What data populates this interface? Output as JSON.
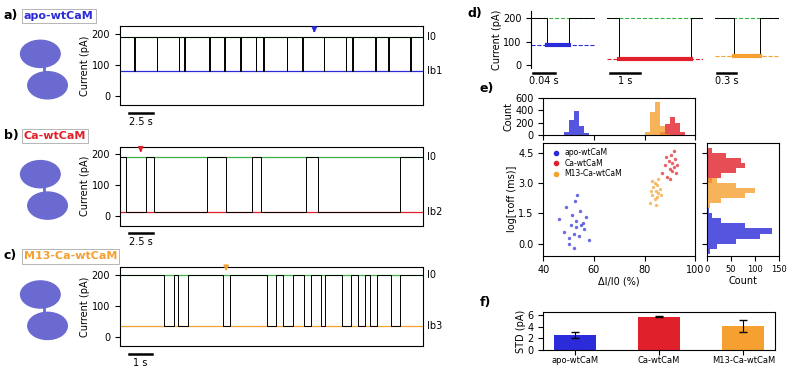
{
  "chart_data": [
    {
      "type": "trace",
      "panel_label": "a)",
      "title": "apo-wtCaM",
      "color": "#2b2bd9",
      "y_label": "Current (pA)",
      "xlim": [
        0,
        32
      ],
      "ylim": [
        -30,
        225
      ],
      "yticks": [
        0,
        100,
        200
      ],
      "tick_labels": "y",
      "open_level": 190,
      "blocked_level": 80,
      "open_label": "I0",
      "blocked_label": "Ib1",
      "events": [
        [
          1.5,
          1.56
        ],
        [
          3.9,
          3.96
        ],
        [
          6.2,
          6.26
        ],
        [
          6.8,
          6.86
        ],
        [
          9.4,
          9.46
        ],
        [
          11.0,
          11.06
        ],
        [
          12.7,
          12.76
        ],
        [
          14.3,
          14.36
        ],
        [
          15.1,
          15.16
        ],
        [
          17.6,
          17.66
        ],
        [
          19.2,
          19.26
        ],
        [
          21.5,
          21.56
        ],
        [
          23.8,
          23.86
        ],
        [
          24.5,
          24.56
        ],
        [
          26.9,
          26.96
        ],
        [
          28.3,
          28.36
        ],
        [
          30.6,
          30.66
        ]
      ],
      "arrow_time": 20.5,
      "scale_bar": {
        "length": 2.5,
        "label": "2.5 s"
      }
    },
    {
      "type": "trace",
      "panel_label": "b)",
      "title": "Ca-wtCaM",
      "color": "#e0202a",
      "y_label": "Current (pA)",
      "xlim": [
        0,
        32
      ],
      "ylim": [
        -30,
        225
      ],
      "yticks": [
        0,
        100,
        200
      ],
      "tick_labels": "y",
      "open_level": 192,
      "blocked_level": 15,
      "open_label": "I0",
      "blocked_label": "Ib2",
      "events": [
        [
          0.6,
          2.8
        ],
        [
          3.6,
          9.2
        ],
        [
          11.2,
          13.9
        ],
        [
          14.9,
          19.6
        ],
        [
          20.9,
          29.5
        ]
      ],
      "arrow_time": 2.2,
      "scale_bar": {
        "length": 2.5,
        "label": "2.5 s"
      }
    },
    {
      "type": "trace",
      "panel_label": "c)",
      "title": "M13-Ca-wtCaM",
      "color": "#f5a030",
      "y_label": "Current (pA)",
      "xlim": [
        0,
        13
      ],
      "ylim": [
        -30,
        225
      ],
      "yticks": [
        0,
        100,
        200
      ],
      "tick_labels": "y",
      "open_level": 198,
      "blocked_level": 35,
      "open_label": "I0",
      "blocked_label": "Ib3",
      "events": [
        [
          1.9,
          2.3
        ],
        [
          2.5,
          2.9
        ],
        [
          4.4,
          4.7
        ],
        [
          6.3,
          6.7
        ],
        [
          7.0,
          7.4
        ],
        [
          7.9,
          8.2
        ],
        [
          8.6,
          8.8
        ],
        [
          9.5,
          9.9
        ],
        [
          10.2,
          10.5
        ],
        [
          10.7,
          11.0
        ],
        [
          11.6,
          12.0
        ]
      ],
      "arrow_time": 4.55,
      "scale_bar": {
        "length": 1,
        "label": "1 s"
      }
    },
    {
      "type": "trace_segments",
      "panel_label": "d)",
      "y_label": "Current (pA)",
      "ylim": [
        -10,
        230
      ],
      "yticks": [
        0,
        100,
        200
      ],
      "open_level": 200,
      "open_color": "#3cb043",
      "segments": [
        {
          "xlim": [
            0,
            0.12
          ],
          "events": [
            [
              0.03,
              0.07
            ]
          ],
          "blocked_level": 85,
          "color": "#2b2bd9",
          "scale_bar": {
            "length": 0.04,
            "label": "0.04 s"
          }
        },
        {
          "xlim": [
            0,
            3.2
          ],
          "events": [
            [
              0.4,
              2.8
            ]
          ],
          "blocked_level": 25,
          "color": "#e0202a",
          "scale_bar": {
            "length": 1,
            "label": "1 s"
          }
        },
        {
          "xlim": [
            0,
            1.0
          ],
          "events": [
            [
              0.3,
              0.7
            ]
          ],
          "blocked_level": 38,
          "color": "#f5a030",
          "scale_bar": {
            "length": 0.3,
            "label": "0.3 s"
          }
        }
      ]
    },
    {
      "type": "scatter_hist",
      "panel_label": "e)",
      "x_label": "ΔI/I0 (%)",
      "y_label": "log[τoff (ms)]",
      "xlim": [
        40,
        100
      ],
      "xticks": [
        40,
        60,
        80,
        100
      ],
      "ylim": [
        -0.6,
        5.0
      ],
      "yticks": [
        {
          "value": 0,
          "label": "0.0"
        },
        {
          "value": 1.5,
          "label": "1.5"
        },
        {
          "value": 3,
          "label": "3.0"
        },
        {
          "value": 4.5,
          "label": "4.5"
        }
      ],
      "count_label": "Count",
      "count_ylim": [
        0,
        600
      ],
      "count_yticks": [
        0,
        200,
        400,
        600
      ],
      "count_xlim": [
        0,
        150
      ],
      "count_xticks": [
        0,
        50,
        100,
        150
      ],
      "legend": "upper left",
      "series": [
        {
          "name": "apo-wtCaM",
          "color": "#2b2bd9",
          "x": [
            46,
            48,
            49,
            50,
            51,
            51.5,
            52,
            52.5,
            53,
            53,
            54,
            54.5,
            55,
            56,
            57,
            58,
            50,
            52,
            53.5,
            55.5
          ],
          "y": [
            1.2,
            0.6,
            1.8,
            0.3,
            0.9,
            1.4,
            0.5,
            2.1,
            0.8,
            1.1,
            0.4,
            1.6,
            0.9,
            0.7,
            1.3,
            0.2,
            0.0,
            -0.2,
            2.4,
            1.0
          ],
          "x_hist": {
            "bins": [
              46,
              48,
              50,
              52,
              54,
              56,
              58,
              60
            ],
            "counts": [
              10,
              60,
              250,
              390,
              150,
              30,
              5
            ]
          },
          "y_hist": {
            "bins": [
              -0.5,
              -0.25,
              0,
              0.25,
              0.5,
              0.75,
              1.0,
              1.25,
              1.5,
              1.75
            ],
            "counts": [
              5,
              20,
              60,
              110,
              135,
              80,
              30,
              10,
              3
            ]
          }
        },
        {
          "name": "Ca-wtCaM",
          "color": "#e0202a",
          "x": [
            87,
            88,
            89,
            89.5,
            90,
            90.5,
            91,
            91,
            91.5,
            92,
            92.5,
            93,
            90,
            91.8,
            88.5
          ],
          "y": [
            3.5,
            3.9,
            3.3,
            4.1,
            3.7,
            4.4,
            3.6,
            4.0,
            3.8,
            4.2,
            3.5,
            3.9,
            3.2,
            4.6,
            4.3
          ],
          "x_hist": {
            "bins": [
              84,
              86,
              88,
              90,
              92,
              94,
              96,
              98
            ],
            "counts": [
              10,
              50,
              180,
              290,
              200,
              60,
              10
            ]
          },
          "y_hist": {
            "bins": [
              3.0,
              3.25,
              3.5,
              3.75,
              4.0,
              4.25,
              4.5,
              4.75
            ],
            "counts": [
              10,
              30,
              60,
              80,
              70,
              40,
              10
            ]
          }
        },
        {
          "name": "M13-Ca-wtCaM",
          "color": "#f5a030",
          "x": [
            82,
            83,
            83.5,
            84,
            84,
            84.5,
            85,
            85,
            85.5,
            86,
            83,
            84.5,
            85.2,
            86.5,
            82.5
          ],
          "y": [
            2.0,
            2.4,
            2.8,
            2.2,
            3.0,
            2.6,
            2.3,
            2.9,
            2.5,
            2.7,
            3.1,
            1.9,
            3.2,
            2.4,
            2.6
          ],
          "x_hist": {
            "bins": [
              78,
              80,
              82,
              84,
              86,
              88,
              90
            ],
            "counts": [
              10,
              60,
              380,
              540,
              150,
              20
            ]
          },
          "y_hist": {
            "bins": [
              1.75,
              2.0,
              2.25,
              2.5,
              2.75,
              3.0,
              3.25
            ],
            "counts": [
              5,
              30,
              80,
              100,
              60,
              20
            ]
          }
        }
      ]
    },
    {
      "type": "bar",
      "panel_label": "f)",
      "y_label": "STD (pA)",
      "categories": [
        "apo-wtCaM",
        "Ca-wtCaM",
        "M13-Ca-wtCaM"
      ],
      "values": [
        2.6,
        5.7,
        4.1
      ],
      "errors": [
        0.5,
        0.1,
        1.1
      ],
      "colors": [
        "#2b2bd9",
        "#e0202a",
        "#f5a030"
      ],
      "ylim": [
        0,
        6.5
      ],
      "yticks": [
        0,
        2,
        4,
        6
      ]
    }
  ]
}
